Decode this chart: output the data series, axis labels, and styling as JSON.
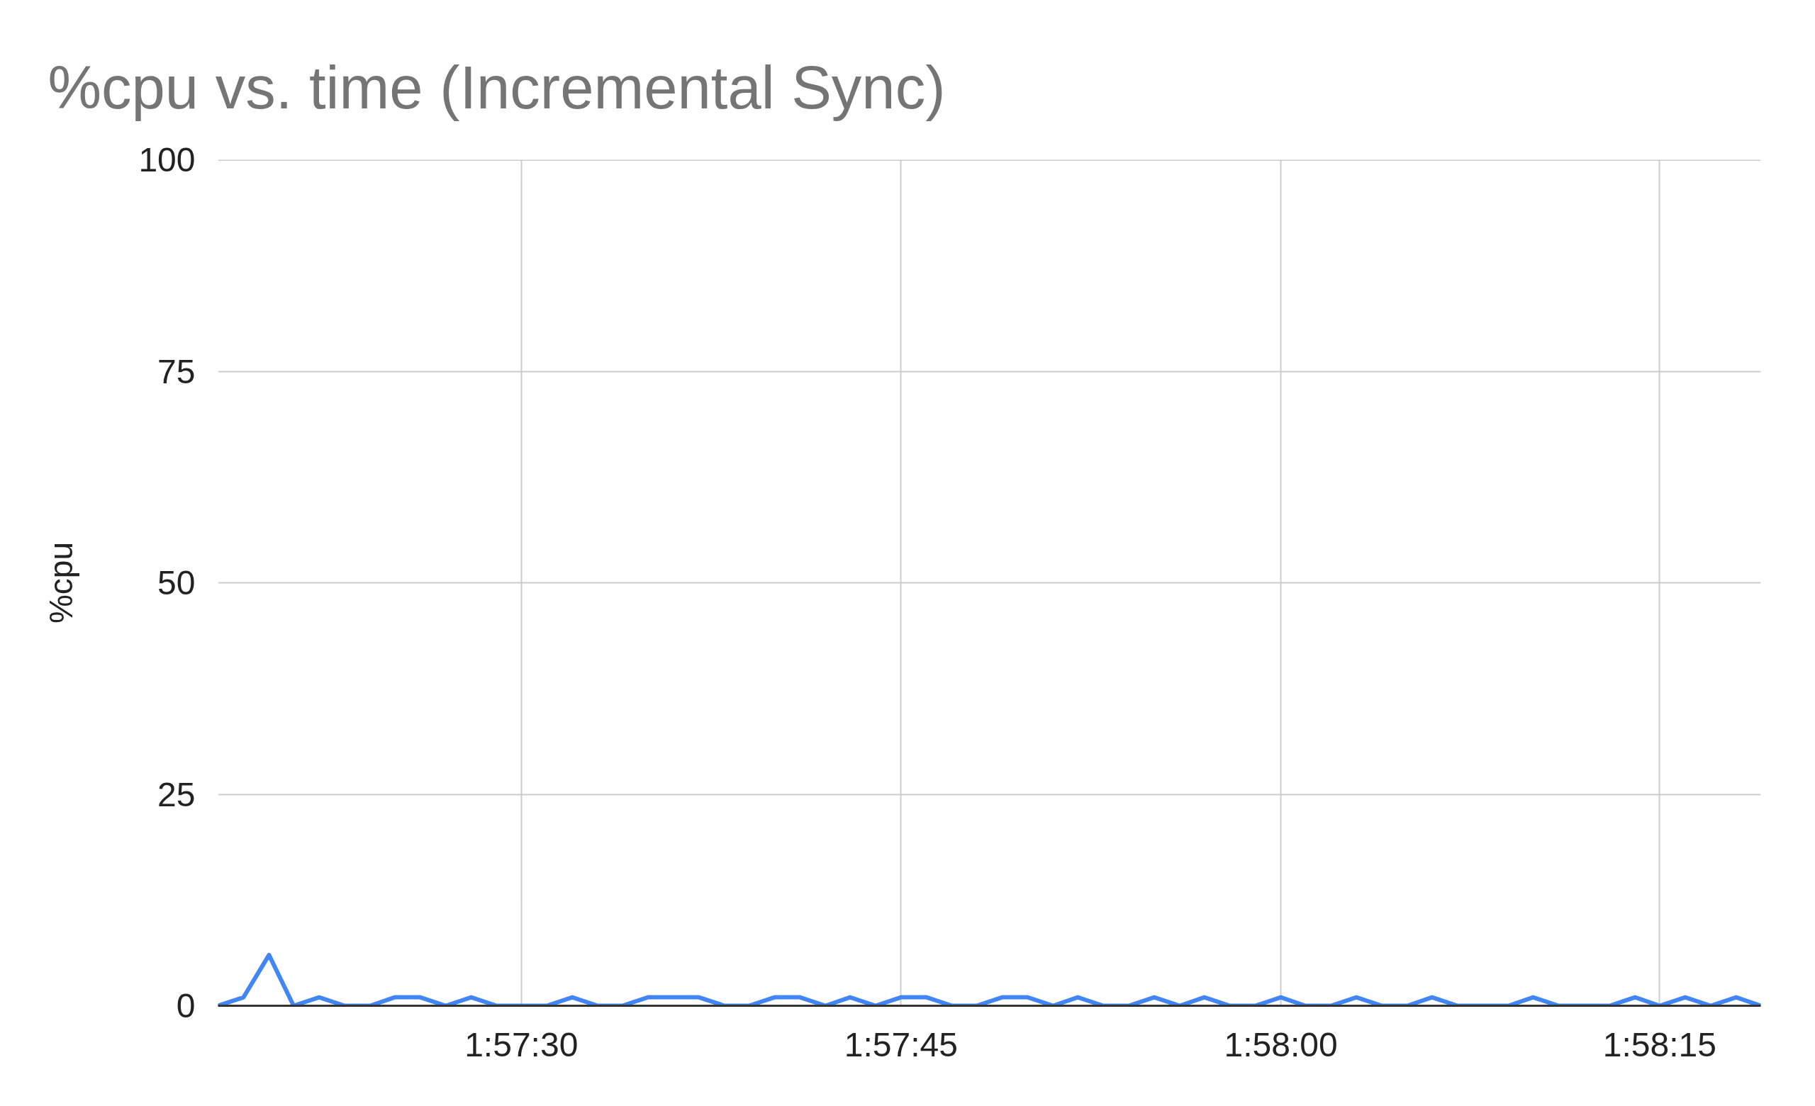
{
  "chart_data": {
    "type": "line",
    "title": "%cpu vs. time (Incremental Sync)",
    "ylabel": "%cpu",
    "x": [
      1.955,
      1.95528,
      1.95556,
      1.95583,
      1.95611,
      1.95639,
      1.95667,
      1.95694,
      1.95722,
      1.9575,
      1.95778,
      1.95806,
      1.95833,
      1.95861,
      1.95889,
      1.95917,
      1.95944,
      1.95972,
      1.96,
      1.96028,
      1.96056,
      1.96083,
      1.96111,
      1.96139,
      1.96167,
      1.96194,
      1.96222,
      1.9625,
      1.96278,
      1.96306,
      1.96333,
      1.96361,
      1.96389,
      1.96417,
      1.96444,
      1.96472,
      1.965,
      1.96528,
      1.96556,
      1.96583,
      1.96611,
      1.96639,
      1.96667,
      1.96694,
      1.96722,
      1.9675,
      1.96778,
      1.96806,
      1.96833,
      1.96861,
      1.96889,
      1.96917,
      1.96944,
      1.96972,
      1.97,
      1.97028,
      1.97056,
      1.97083,
      1.97111,
      1.97139,
      1.97167,
      1.97194
    ],
    "values": [
      0,
      1,
      6,
      0,
      1,
      0,
      0,
      1,
      1,
      0,
      1,
      0,
      0,
      0,
      1,
      0,
      0,
      1,
      1,
      1,
      0,
      0,
      1,
      1,
      0,
      1,
      0,
      1,
      1,
      0,
      0,
      1,
      1,
      0,
      1,
      0,
      0,
      1,
      0,
      1,
      0,
      0,
      1,
      0,
      0,
      1,
      0,
      0,
      1,
      0,
      0,
      0,
      1,
      0,
      0,
      0,
      1,
      0,
      1,
      0,
      1,
      0
    ],
    "color": "#4285f4",
    "xlim": [
      1.955,
      1.97194
    ],
    "ylim": [
      0,
      100
    ],
    "xticks": [
      {
        "value": 1.95833,
        "label": "1:57:30"
      },
      {
        "value": 1.9625,
        "label": "1:57:45"
      },
      {
        "value": 1.96667,
        "label": "1:58:00"
      },
      {
        "value": 1.97083,
        "label": "1:58:15"
      }
    ],
    "yticks": [
      0,
      25,
      50,
      75,
      100
    ],
    "grid": true
  }
}
